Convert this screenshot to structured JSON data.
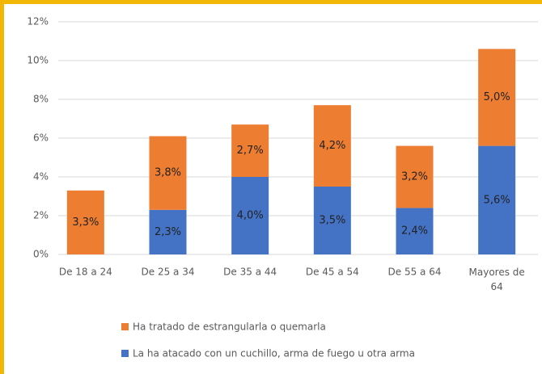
{
  "chart_data": {
    "type": "stacked-bar",
    "categories": [
      "De 18 a 24",
      "De 25 a 34",
      "De 35 a 44",
      "De 45 a 54",
      "De 55 a 64",
      "Mayores de 64"
    ],
    "series": [
      {
        "name": "La ha atacado con un cuchillo, arma de fuego u otra arma",
        "color": "#4472c4",
        "values": [
          null,
          2.3,
          4.0,
          3.5,
          2.4,
          5.6
        ],
        "value_labels": [
          null,
          "2,3%",
          "4,0%",
          "3,5%",
          "2,4%",
          "5,6%"
        ]
      },
      {
        "name": "Ha tratado de estrangularla o quemarla",
        "color": "#ed7d31",
        "values": [
          3.3,
          3.8,
          2.7,
          4.2,
          3.2,
          5.0
        ],
        "value_labels": [
          "3,3%",
          "3,8%",
          "2,7%",
          "4,2%",
          "3,2%",
          "5,0%"
        ]
      }
    ],
    "ylim": [
      0,
      12
    ],
    "yticks": [
      {
        "value": 0,
        "label": "0%"
      },
      {
        "value": 2,
        "label": "2%"
      },
      {
        "value": 4,
        "label": "4%"
      },
      {
        "value": 6,
        "label": "6%"
      },
      {
        "value": 8,
        "label": "8%"
      },
      {
        "value": 10,
        "label": "10%"
      },
      {
        "value": 12,
        "label": "12%"
      }
    ],
    "grid": true
  }
}
